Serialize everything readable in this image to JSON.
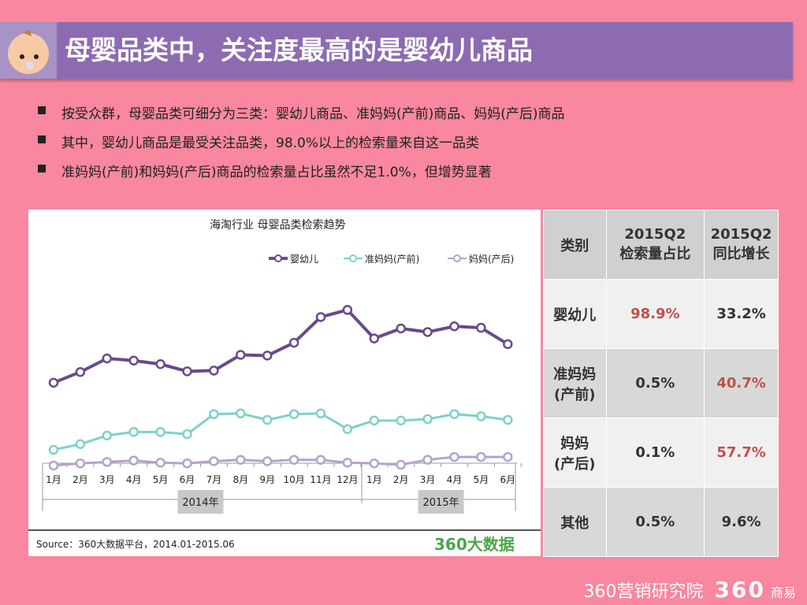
{
  "header": {
    "title": "母婴品类中，关注度最高的是婴幼儿商品",
    "icon": "baby-face-icon"
  },
  "bullets": [
    "按受众群，母婴品类可细分为三类：婴幼儿商品、准妈妈(产前)商品、妈妈(产后)商品",
    "其中，婴幼儿商品是最受关注品类，98.0%以上的检索量来自这一品类",
    "准妈妈(产前)和妈妈(产后)商品的检索量占比虽然不足1.0%，但增势显著"
  ],
  "chart_data": {
    "type": "line",
    "title": "海淘行业 母婴品类检索趋势",
    "categories": [
      "1月",
      "2月",
      "3月",
      "4月",
      "5月",
      "6月",
      "7月",
      "8月",
      "9月",
      "10月",
      "11月",
      "12月",
      "1月",
      "2月",
      "3月",
      "4月",
      "5月",
      "6月"
    ],
    "groups": [
      {
        "label": "2014年",
        "count": 12
      },
      {
        "label": "2015年",
        "count": 6
      }
    ],
    "ylim": [
      0,
      260
    ],
    "grid": false,
    "legend": "top-right",
    "series": [
      {
        "name": "婴幼儿",
        "color": "#684a8c",
        "values": [
          126,
          141,
          160,
          157,
          152,
          142,
          143,
          165,
          164,
          182,
          218,
          228,
          188,
          202,
          197,
          205,
          203,
          180
        ]
      },
      {
        "name": "准妈妈(产前)",
        "color": "#7fd1c7",
        "values": [
          32,
          40,
          52,
          57,
          57,
          54,
          82,
          83,
          74,
          82,
          83,
          61,
          73,
          73,
          75,
          82,
          79,
          74
        ]
      },
      {
        "name": "妈妈(产后)",
        "color": "#b3a2cf",
        "values": [
          10,
          13,
          15,
          17,
          14,
          13,
          16,
          18,
          16,
          18,
          18,
          14,
          13,
          11,
          18,
          22,
          22,
          22
        ]
      }
    ],
    "source": "Source：360大数据平台，2014.01-2015.06",
    "brand": "360大数据"
  },
  "table": {
    "headers": [
      "类别",
      "2015Q2\n检索量占比",
      "2015Q2\n同比增长"
    ],
    "rows": [
      [
        "婴幼儿",
        "98.9%",
        "33.2%"
      ],
      [
        "准妈妈\n(产前)",
        "0.5%",
        "40.7%"
      ],
      [
        "妈妈\n(产后)",
        "0.1%",
        "57.7%"
      ],
      [
        "其他",
        "0.5%",
        "9.6%"
      ]
    ],
    "highlight_color": "#c0504d"
  },
  "footer": {
    "brand1": "360营销研究院",
    "brand2_num": "360",
    "brand2_text": "商易"
  }
}
